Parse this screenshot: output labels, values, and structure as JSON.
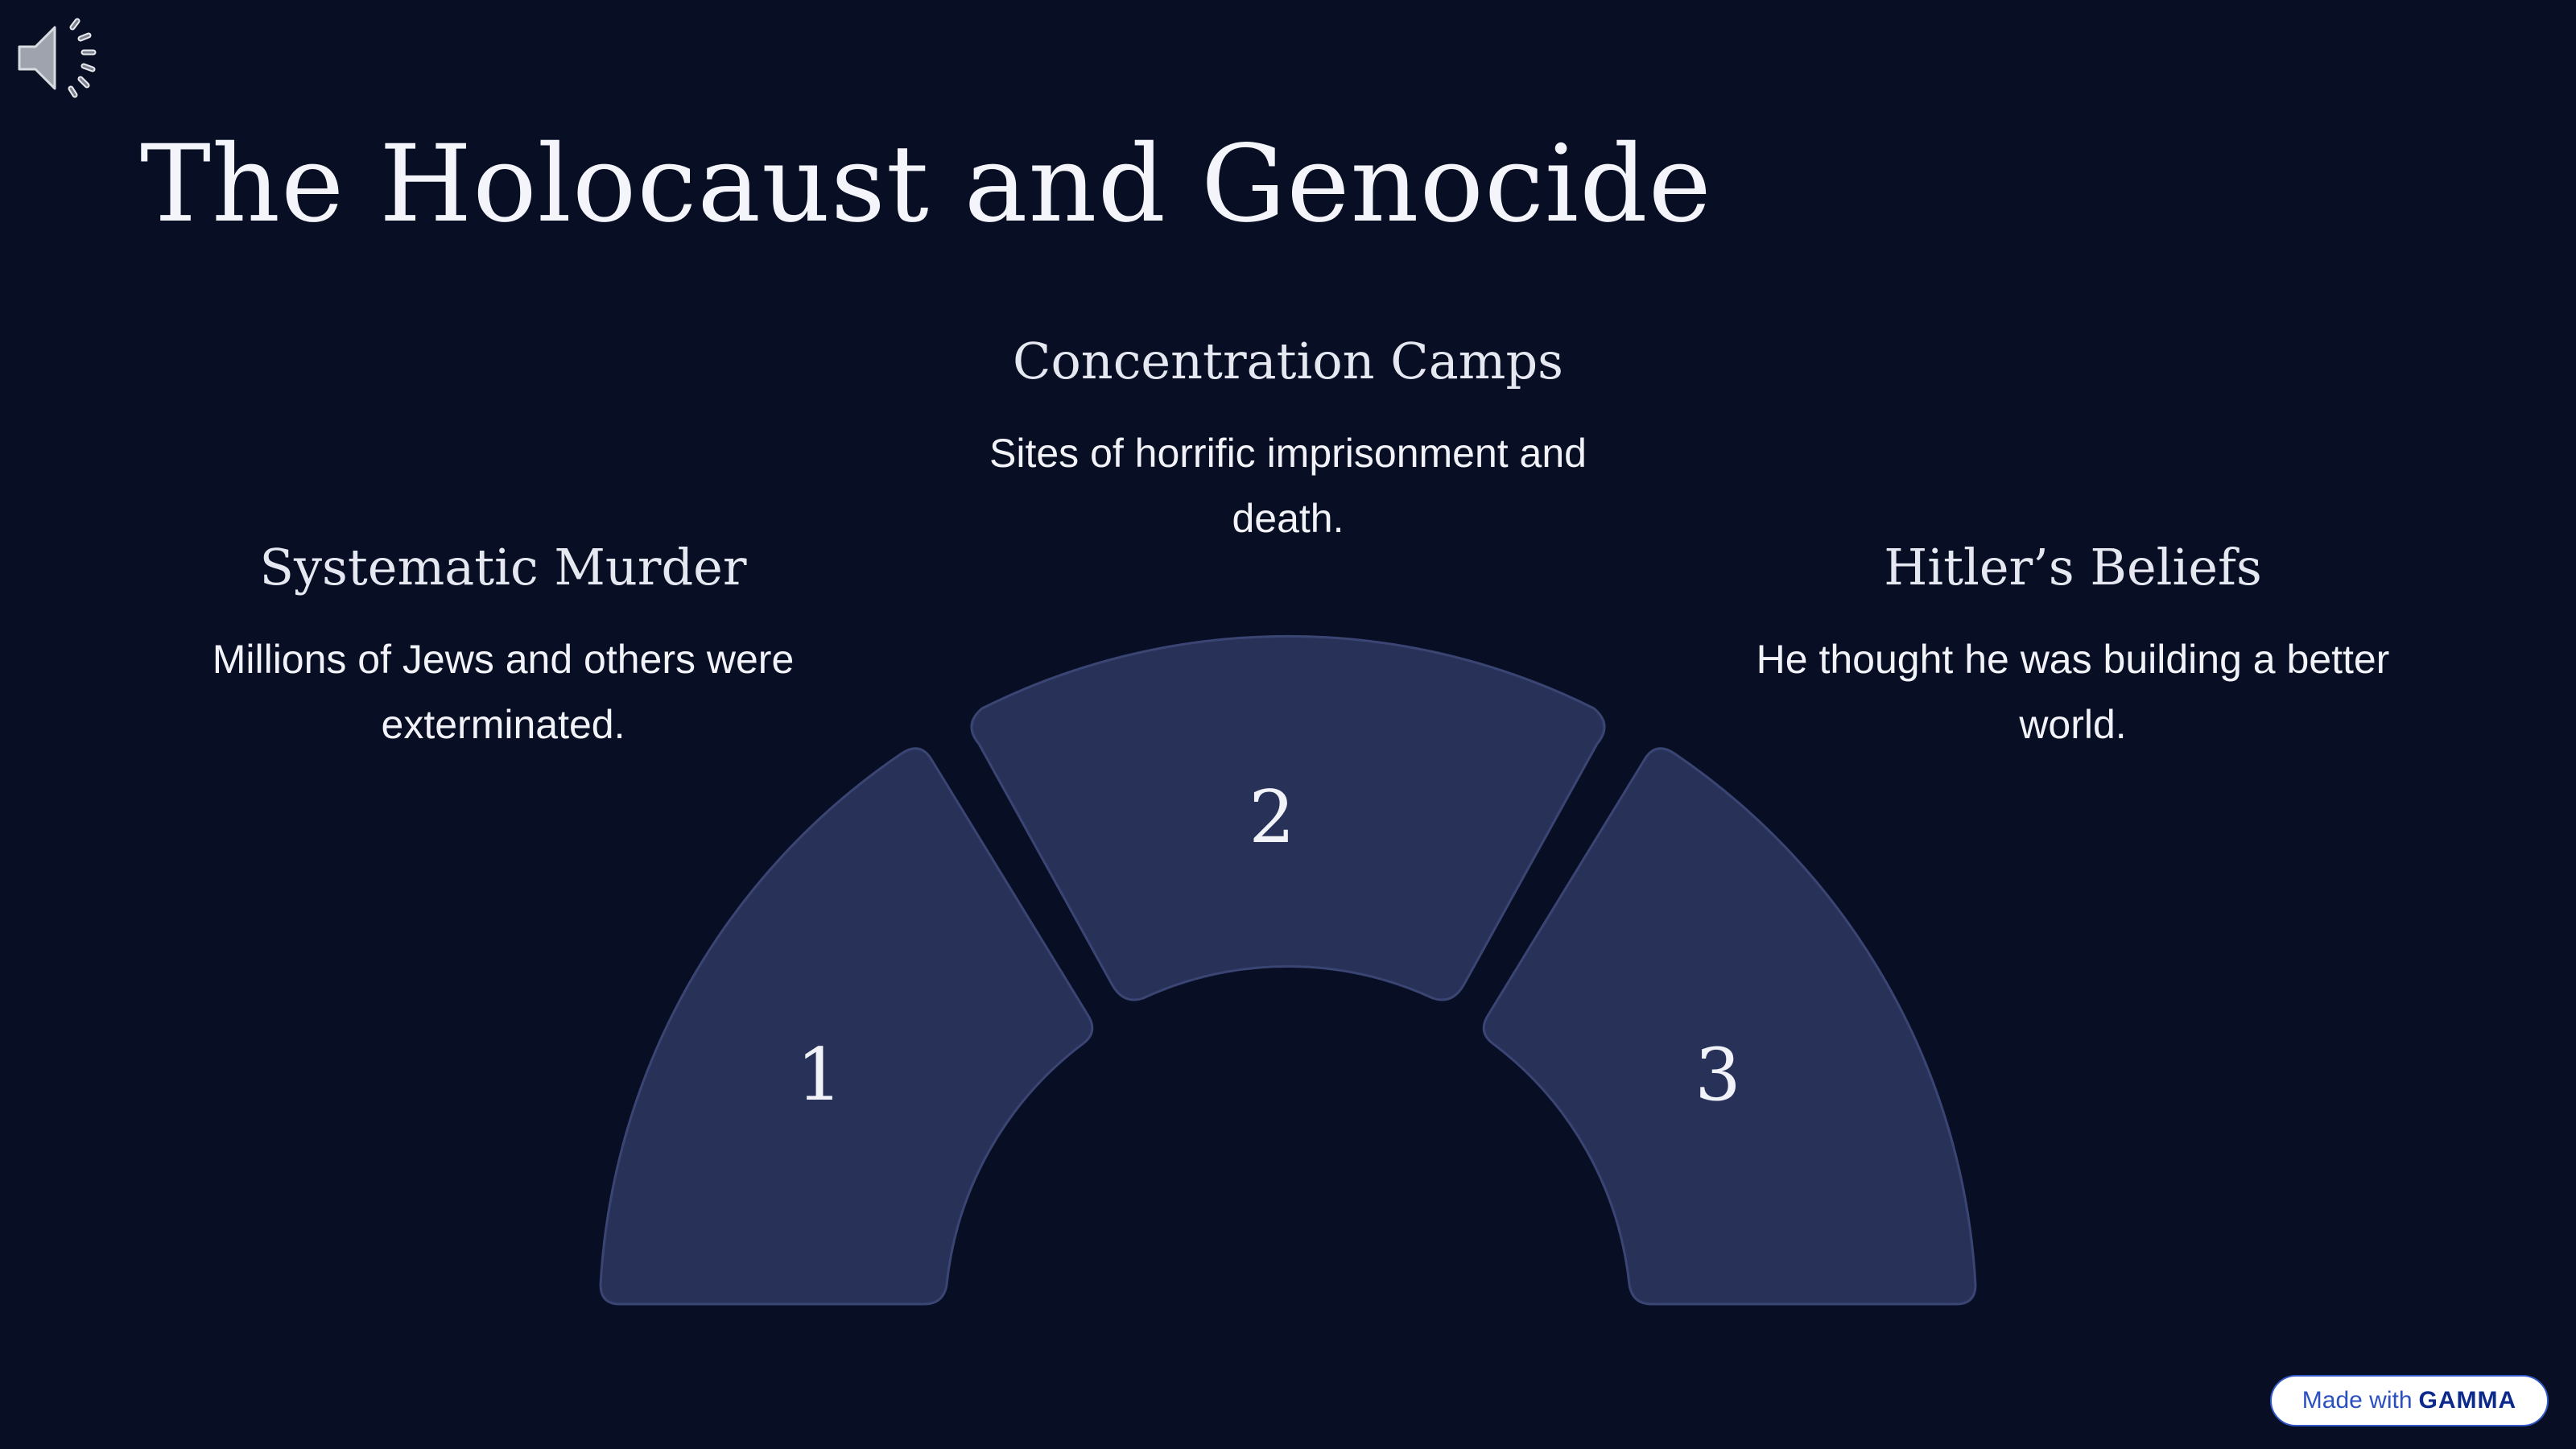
{
  "slide": {
    "title": "The Holocaust and Genocide",
    "items": [
      {
        "number": "1",
        "heading": "Systematic Murder",
        "description": "Millions of Jews and others were exterminated."
      },
      {
        "number": "2",
        "heading": "Concentration Camps",
        "description": "Sites of horrific imprisonment and death."
      },
      {
        "number": "3",
        "heading": "Hitler’s Beliefs",
        "description": "He thought he was building a better world."
      }
    ]
  },
  "badge": {
    "prefix": "Made with",
    "brand": "GAMMA"
  },
  "icons": {
    "audio": "speaker-volume-icon"
  },
  "colors": {
    "background": "#080e24",
    "segment_fill": "#283258",
    "segment_stroke": "#3a4573",
    "text": "#ffffff",
    "badge_accent": "#3257c7"
  }
}
